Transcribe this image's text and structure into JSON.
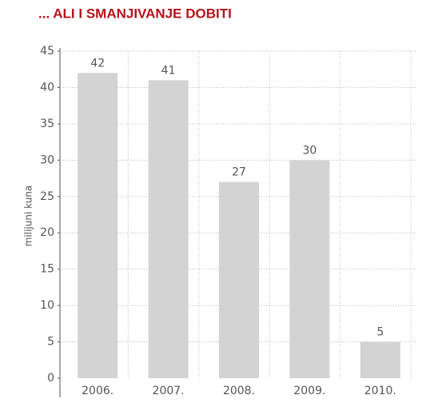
{
  "chart_data": {
    "type": "bar",
    "title": "... ALI I SMANJIVANJE DOBITI",
    "ylabel": "milijuni kuna",
    "categories": [
      "2006.",
      "2007.",
      "2008.",
      "2009.",
      "2010."
    ],
    "values": [
      42,
      41,
      27,
      30,
      5
    ],
    "color": "#d3d3d3",
    "ylim": [
      0,
      45
    ],
    "yticks": [
      0,
      5,
      10,
      15,
      20,
      25,
      30,
      35,
      40,
      45
    ],
    "grid": true
  }
}
